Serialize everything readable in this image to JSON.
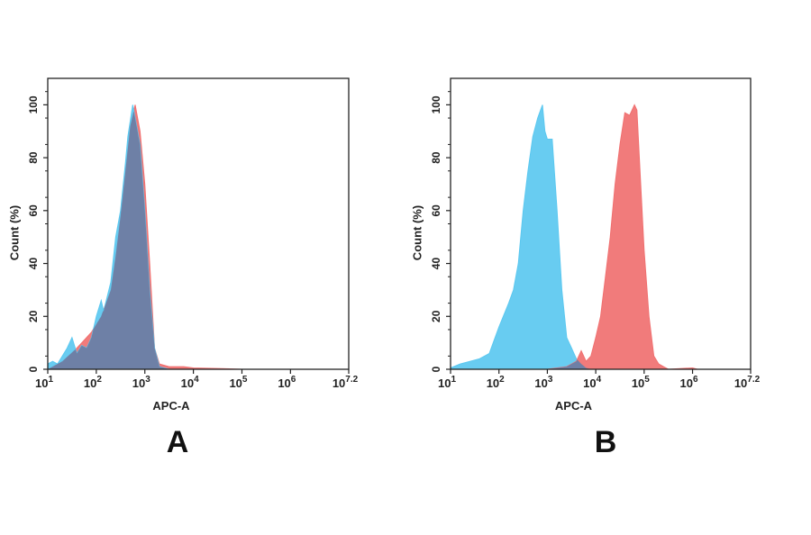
{
  "chart_data": [
    {
      "type": "area",
      "panel_label": "A",
      "xlabel": "APC-A",
      "ylabel": "Count (%)",
      "x_scale": "log10",
      "xlim_log10": [
        1,
        7.2
      ],
      "ylim": [
        0,
        110
      ],
      "x_ticks": [
        {
          "base": "10",
          "exp": "1",
          "v": 1
        },
        {
          "base": "10",
          "exp": "2",
          "v": 2
        },
        {
          "base": "10",
          "exp": "3",
          "v": 3
        },
        {
          "base": "10",
          "exp": "4",
          "v": 4
        },
        {
          "base": "10",
          "exp": "5",
          "v": 5
        },
        {
          "base": "10",
          "exp": "6",
          "v": 6
        },
        {
          "base": "10",
          "exp": "7.2",
          "v": 7.2
        }
      ],
      "y_ticks": [
        "0",
        "20",
        "40",
        "60",
        "80",
        "100"
      ],
      "grid": false,
      "overlap_color": "#6E80A6",
      "series": [
        {
          "color": "#F07070",
          "x_log10": [
            1.0,
            1.3,
            1.6,
            1.9,
            2.1,
            2.3,
            2.4,
            2.5,
            2.6,
            2.7,
            2.8,
            2.9,
            3.0,
            3.1,
            3.2,
            3.3,
            3.5,
            3.8,
            4.0,
            4.5,
            5.0
          ],
          "y": [
            0,
            3,
            8,
            14,
            20,
            30,
            43,
            58,
            75,
            92,
            100,
            90,
            70,
            40,
            8,
            2,
            1,
            1,
            0.5,
            0.3,
            0
          ]
        },
        {
          "color": "#5BC8F0",
          "x_log10": [
            1.0,
            1.1,
            1.2,
            1.4,
            1.5,
            1.6,
            1.7,
            1.8,
            1.9,
            2.0,
            2.1,
            2.15,
            2.3,
            2.4,
            2.5,
            2.6,
            2.65,
            2.75,
            2.8,
            2.9,
            3.0,
            3.1,
            3.2,
            3.3,
            3.5
          ],
          "y": [
            2,
            3,
            2,
            8,
            12,
            6,
            9,
            8,
            12,
            20,
            26,
            22,
            33,
            50,
            60,
            78,
            88,
            100,
            95,
            85,
            60,
            30,
            8,
            1,
            0
          ]
        }
      ]
    },
    {
      "type": "area",
      "panel_label": "B",
      "xlabel": "APC-A",
      "ylabel": "Count (%)",
      "x_scale": "log10",
      "xlim_log10": [
        1,
        7.2
      ],
      "ylim": [
        0,
        110
      ],
      "x_ticks": [
        {
          "base": "10",
          "exp": "1",
          "v": 1
        },
        {
          "base": "10",
          "exp": "2",
          "v": 2
        },
        {
          "base": "10",
          "exp": "3",
          "v": 3
        },
        {
          "base": "10",
          "exp": "4",
          "v": 4
        },
        {
          "base": "10",
          "exp": "5",
          "v": 5
        },
        {
          "base": "10",
          "exp": "6",
          "v": 6
        },
        {
          "base": "10",
          "exp": "7.2",
          "v": 7.2
        }
      ],
      "y_ticks": [
        "0",
        "20",
        "40",
        "60",
        "80",
        "100"
      ],
      "grid": false,
      "overlap_color": "#6E80A6",
      "series": [
        {
          "color": "#5BC8F0",
          "x_log10": [
            1.0,
            1.2,
            1.4,
            1.6,
            1.8,
            2.0,
            2.2,
            2.3,
            2.4,
            2.5,
            2.6,
            2.7,
            2.8,
            2.9,
            2.95,
            3.0,
            3.1,
            3.2,
            3.3,
            3.4,
            3.5,
            3.6,
            3.7,
            3.8,
            3.9
          ],
          "y": [
            0.5,
            2,
            3,
            4,
            6,
            16,
            25,
            30,
            40,
            60,
            75,
            88,
            95,
            100,
            90,
            87,
            87,
            60,
            30,
            12,
            8,
            4,
            2,
            0.5,
            0
          ]
        },
        {
          "color": "#F07070",
          "x_log10": [
            3.0,
            3.4,
            3.6,
            3.7,
            3.8,
            3.9,
            4.0,
            4.1,
            4.2,
            4.3,
            4.4,
            4.5,
            4.6,
            4.7,
            4.8,
            4.85,
            4.9,
            5.0,
            5.1,
            5.2,
            5.3,
            5.4,
            5.5,
            6.0,
            6.1
          ],
          "y": [
            0,
            1,
            3,
            7,
            3,
            5,
            12,
            20,
            35,
            50,
            70,
            85,
            97,
            96,
            100,
            98,
            80,
            45,
            20,
            5,
            2,
            1,
            0,
            0.5,
            0
          ]
        }
      ]
    }
  ]
}
